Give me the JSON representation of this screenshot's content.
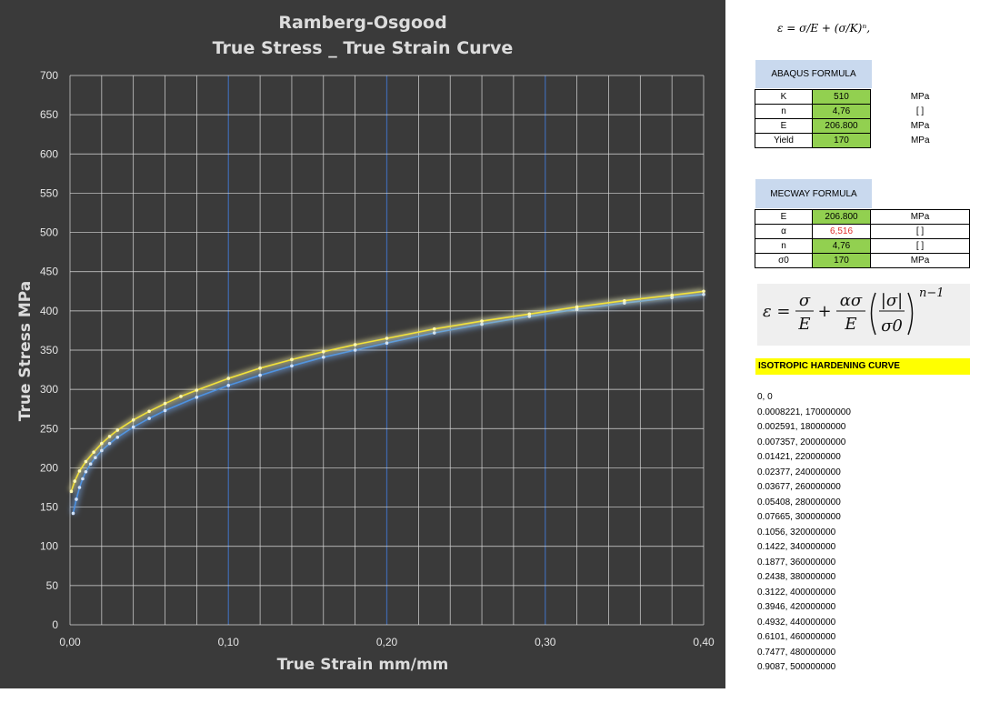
{
  "chart_data": {
    "type": "line",
    "title": "Ramberg-Osgood",
    "subtitle": "True Stress _ True Strain Curve",
    "xlabel": "True Strain mm/mm",
    "ylabel": "True Stress MPa",
    "xlim": [
      0,
      0.4
    ],
    "ylim": [
      0,
      700
    ],
    "x_ticks": [
      "0,00",
      "0,10",
      "0,20",
      "0,30",
      "0,40"
    ],
    "y_ticks": [
      "0",
      "50",
      "100",
      "150",
      "200",
      "250",
      "300",
      "350",
      "400",
      "450",
      "500",
      "550",
      "600",
      "650",
      "700"
    ],
    "grid": true,
    "legend": "none",
    "series": [
      {
        "color": "#f2e23a",
        "x": [
          0.00082,
          0.003,
          0.006,
          0.01,
          0.015,
          0.02,
          0.025,
          0.03,
          0.04,
          0.05,
          0.06,
          0.07,
          0.08,
          0.1,
          0.12,
          0.14,
          0.16,
          0.18,
          0.2,
          0.23,
          0.26,
          0.29,
          0.32,
          0.35,
          0.38,
          0.4
        ],
        "y": [
          170,
          183,
          196,
          208,
          220,
          231,
          240,
          248,
          261,
          272,
          282,
          291,
          299,
          314,
          327,
          338,
          348,
          357,
          365,
          377,
          387,
          396,
          405,
          413,
          420,
          425
        ]
      },
      {
        "color": "#4a90e2",
        "x": [
          0.002,
          0.004,
          0.006,
          0.008,
          0.01,
          0.013,
          0.016,
          0.02,
          0.025,
          0.03,
          0.04,
          0.05,
          0.06,
          0.08,
          0.1,
          0.12,
          0.14,
          0.16,
          0.18,
          0.2,
          0.23,
          0.26,
          0.29,
          0.32,
          0.35,
          0.38,
          0.4
        ],
        "y": [
          142,
          160,
          175,
          186,
          195,
          205,
          213,
          222,
          231,
          239,
          252,
          263,
          273,
          290,
          305,
          318,
          330,
          341,
          350,
          359,
          372,
          383,
          393,
          402,
          410,
          417,
          421
        ]
      }
    ]
  },
  "formulas": {
    "abaqus": "ε = σ/E + (σ/K)ⁿ,",
    "mecway_lhs": "ε =",
    "mecway_num1": "σ",
    "mecway_den1": "E",
    "mecway_plus": "+",
    "mecway_num2": "ασ",
    "mecway_den2": "E",
    "mecway_abs": "|σ|",
    "mecway_sigma0": "σ0",
    "mecway_exp": "n−1"
  },
  "abaqus": {
    "title": "ABAQUS FORMULA",
    "rows": [
      {
        "label": "K",
        "value": "510",
        "unit": "MPa"
      },
      {
        "label": "n",
        "value": "4,76",
        "unit": "[ ]"
      },
      {
        "label": "E",
        "value": "206.800",
        "unit": "MPa"
      },
      {
        "label": "Yield",
        "value": "170",
        "unit": "MPa"
      }
    ]
  },
  "mecway": {
    "title": "MECWAY FORMULA",
    "rows": [
      {
        "label": "E",
        "value": "206.800",
        "unit": "MPa"
      },
      {
        "label": "α",
        "value": "6,516",
        "unit": "[ ]"
      },
      {
        "label": "n",
        "value": "4,76",
        "unit": "[ ]"
      },
      {
        "label": "σ0",
        "value": "170",
        "unit": "MPa"
      }
    ]
  },
  "iso": {
    "title": "ISOTROPIC HARDENING CURVE",
    "lines": [
      "0, 0",
      "0.0008221, 170000000",
      "0.002591, 180000000",
      "0.007357, 200000000",
      "0.01421, 220000000",
      "0.02377, 240000000",
      "0.03677, 260000000",
      "0.05408, 280000000",
      "0.07665, 300000000",
      "0.1056, 320000000",
      "0.1422, 340000000",
      "0.1877, 360000000",
      "0.2438, 380000000",
      "0.3122, 400000000",
      "0.3946, 420000000",
      "0.4932, 440000000",
      "0.6101, 460000000",
      "0.7477, 480000000",
      "0.9087, 500000000"
    ]
  }
}
